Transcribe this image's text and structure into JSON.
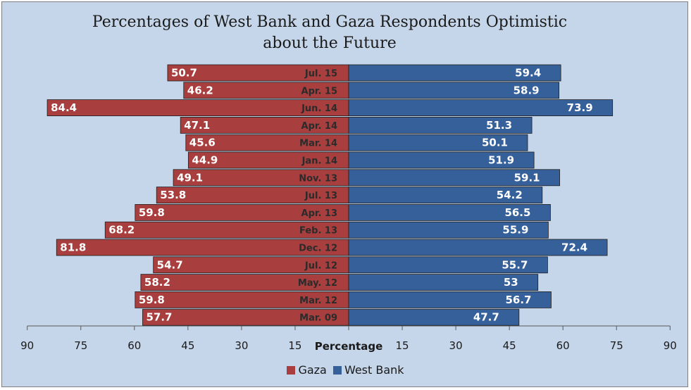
{
  "chart_data": {
    "type": "bar",
    "orientation": "horizontal-butterfly",
    "title": "Percentages of West Bank and Gaza Respondents Optimistic about the Future",
    "title_lines": [
      "Percentages of West Bank and Gaza Respondents Optimistic",
      "about the Future"
    ],
    "xlabel": "Percentage",
    "xlim": [
      0,
      90
    ],
    "xticks_left": [
      "90",
      "75",
      "60",
      "45",
      "30",
      "15"
    ],
    "xticks_right": [
      "15",
      "30",
      "45",
      "60",
      "75",
      "90"
    ],
    "legend_position": "bottom",
    "categories": [
      "Jul. 15",
      "Apr. 15",
      "Jun. 14",
      "Apr. 14",
      "Mar. 14",
      "Jan. 14",
      "Nov. 13",
      "Jul. 13",
      "Apr. 13",
      "Feb. 13",
      "Dec. 12",
      "Jul. 12",
      "May. 12",
      "Mar. 12",
      "Mar. 09"
    ],
    "series": [
      {
        "name": "Gaza",
        "side": "left",
        "color": "#a83f3e",
        "values": [
          50.7,
          46.2,
          84.4,
          47.1,
          45.6,
          44.9,
          49.1,
          53.8,
          59.8,
          68.2,
          81.8,
          54.7,
          58.2,
          59.8,
          57.7
        ],
        "labels": [
          "50.7",
          "46.2",
          "84.4",
          "47.1",
          "45.6",
          "44.9",
          "49.1",
          "53.8",
          "59.8",
          "68.2",
          "81.8",
          "54.7",
          "58.2",
          "59.8",
          "57.7"
        ]
      },
      {
        "name": "West Bank",
        "side": "right",
        "color": "#35609a",
        "values": [
          59.4,
          58.9,
          73.9,
          51.3,
          50.1,
          51.9,
          59.1,
          54.2,
          56.5,
          55.9,
          72.4,
          55.7,
          53,
          56.7,
          47.7
        ],
        "labels": [
          "59.4",
          "58.9",
          "73.9",
          "51.3",
          "50.1",
          "51.9",
          "59.1",
          "54.2",
          "56.5",
          "55.9",
          "72.4",
          "55.7",
          "53",
          "56.7",
          "47.7"
        ]
      }
    ]
  }
}
